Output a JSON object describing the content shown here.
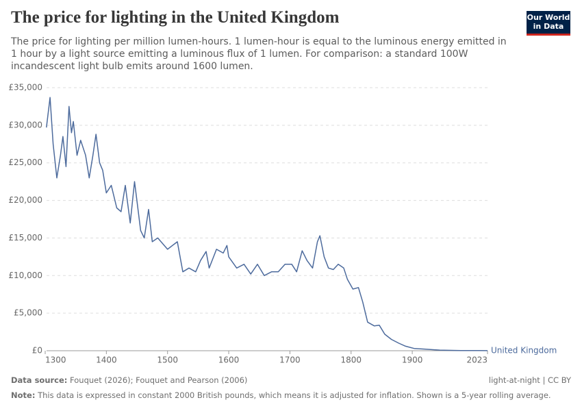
{
  "chart_data": {
    "type": "line",
    "title": "The price for lighting in the United Kingdom",
    "subtitle": "The price for lighting per million lumen-hours. 1 lumen-hour is equal to the luminous energy emitted in 1 hour by a light source emitting a luminous flux of 1 lumen. For comparison: a standard 100W incandescent light bulb emits around 1600 lumen.",
    "logo": [
      "Our World",
      "in Data"
    ],
    "source_label": "Data source:",
    "source": "Fouquet (2026); Fouquet and Pearson (2006)",
    "license": "light-at-night | CC BY",
    "note_label": "Note:",
    "note": "This data is expressed in constant 2000 British pounds, which means it is adjusted for inflation. Shown is a 5-year rolling average.",
    "x": [
      1302,
      1308,
      1313,
      1319,
      1325,
      1329,
      1334,
      1339,
      1343,
      1346,
      1352,
      1358,
      1366,
      1372,
      1378,
      1383,
      1389,
      1394,
      1400,
      1408,
      1417,
      1424,
      1431,
      1439,
      1446,
      1456,
      1462,
      1469,
      1475,
      1484,
      1500,
      1516,
      1525,
      1535,
      1546,
      1554,
      1563,
      1568,
      1580,
      1591,
      1597,
      1600,
      1613,
      1625,
      1636,
      1647,
      1658,
      1670,
      1681,
      1692,
      1703,
      1711,
      1720,
      1728,
      1737,
      1745,
      1749,
      1756,
      1763,
      1771,
      1779,
      1788,
      1794,
      1803,
      1812,
      1819,
      1827,
      1838,
      1846,
      1855,
      1866,
      1878,
      1889,
      1903,
      1922,
      1945,
      1979,
      2009,
      2023
    ],
    "series": [
      {
        "name": "United Kingdom",
        "color": "#4c6a9c",
        "values": [
          29700,
          33700,
          27500,
          23000,
          26000,
          28500,
          24500,
          32500,
          29000,
          30500,
          26000,
          28000,
          26000,
          23000,
          26000,
          28800,
          25000,
          24000,
          21000,
          22000,
          19000,
          18500,
          22000,
          17000,
          22500,
          16000,
          15000,
          18800,
          14500,
          15000,
          13500,
          14500,
          10500,
          11000,
          10500,
          12000,
          13200,
          11000,
          13500,
          13000,
          14000,
          12500,
          11000,
          11500,
          10200,
          11500,
          10000,
          10500,
          10500,
          11500,
          11500,
          10500,
          13300,
          12000,
          11000,
          14500,
          15300,
          12500,
          11000,
          10800,
          11500,
          11000,
          9500,
          8200,
          8400,
          6500,
          3800,
          3300,
          3400,
          2200,
          1500,
          1000,
          600,
          300,
          200,
          80,
          30,
          15,
          10
        ]
      }
    ],
    "xlim": [
      1300,
      2023
    ],
    "xticks": [
      1300,
      1400,
      1500,
      1600,
      1700,
      1800,
      1900,
      2023
    ],
    "ylim": [
      0,
      35000
    ],
    "yticks": [
      {
        "value": 0,
        "label": "£0"
      },
      {
        "value": 5000,
        "label": "£5,000"
      },
      {
        "value": 10000,
        "label": "£10,000"
      },
      {
        "value": 15000,
        "label": "£15,000"
      },
      {
        "value": 20000,
        "label": "£20,000"
      },
      {
        "value": 25000,
        "label": "£25,000"
      },
      {
        "value": 30000,
        "label": "£30,000"
      },
      {
        "value": 35000,
        "label": "£35,000"
      }
    ],
    "grid": true
  }
}
